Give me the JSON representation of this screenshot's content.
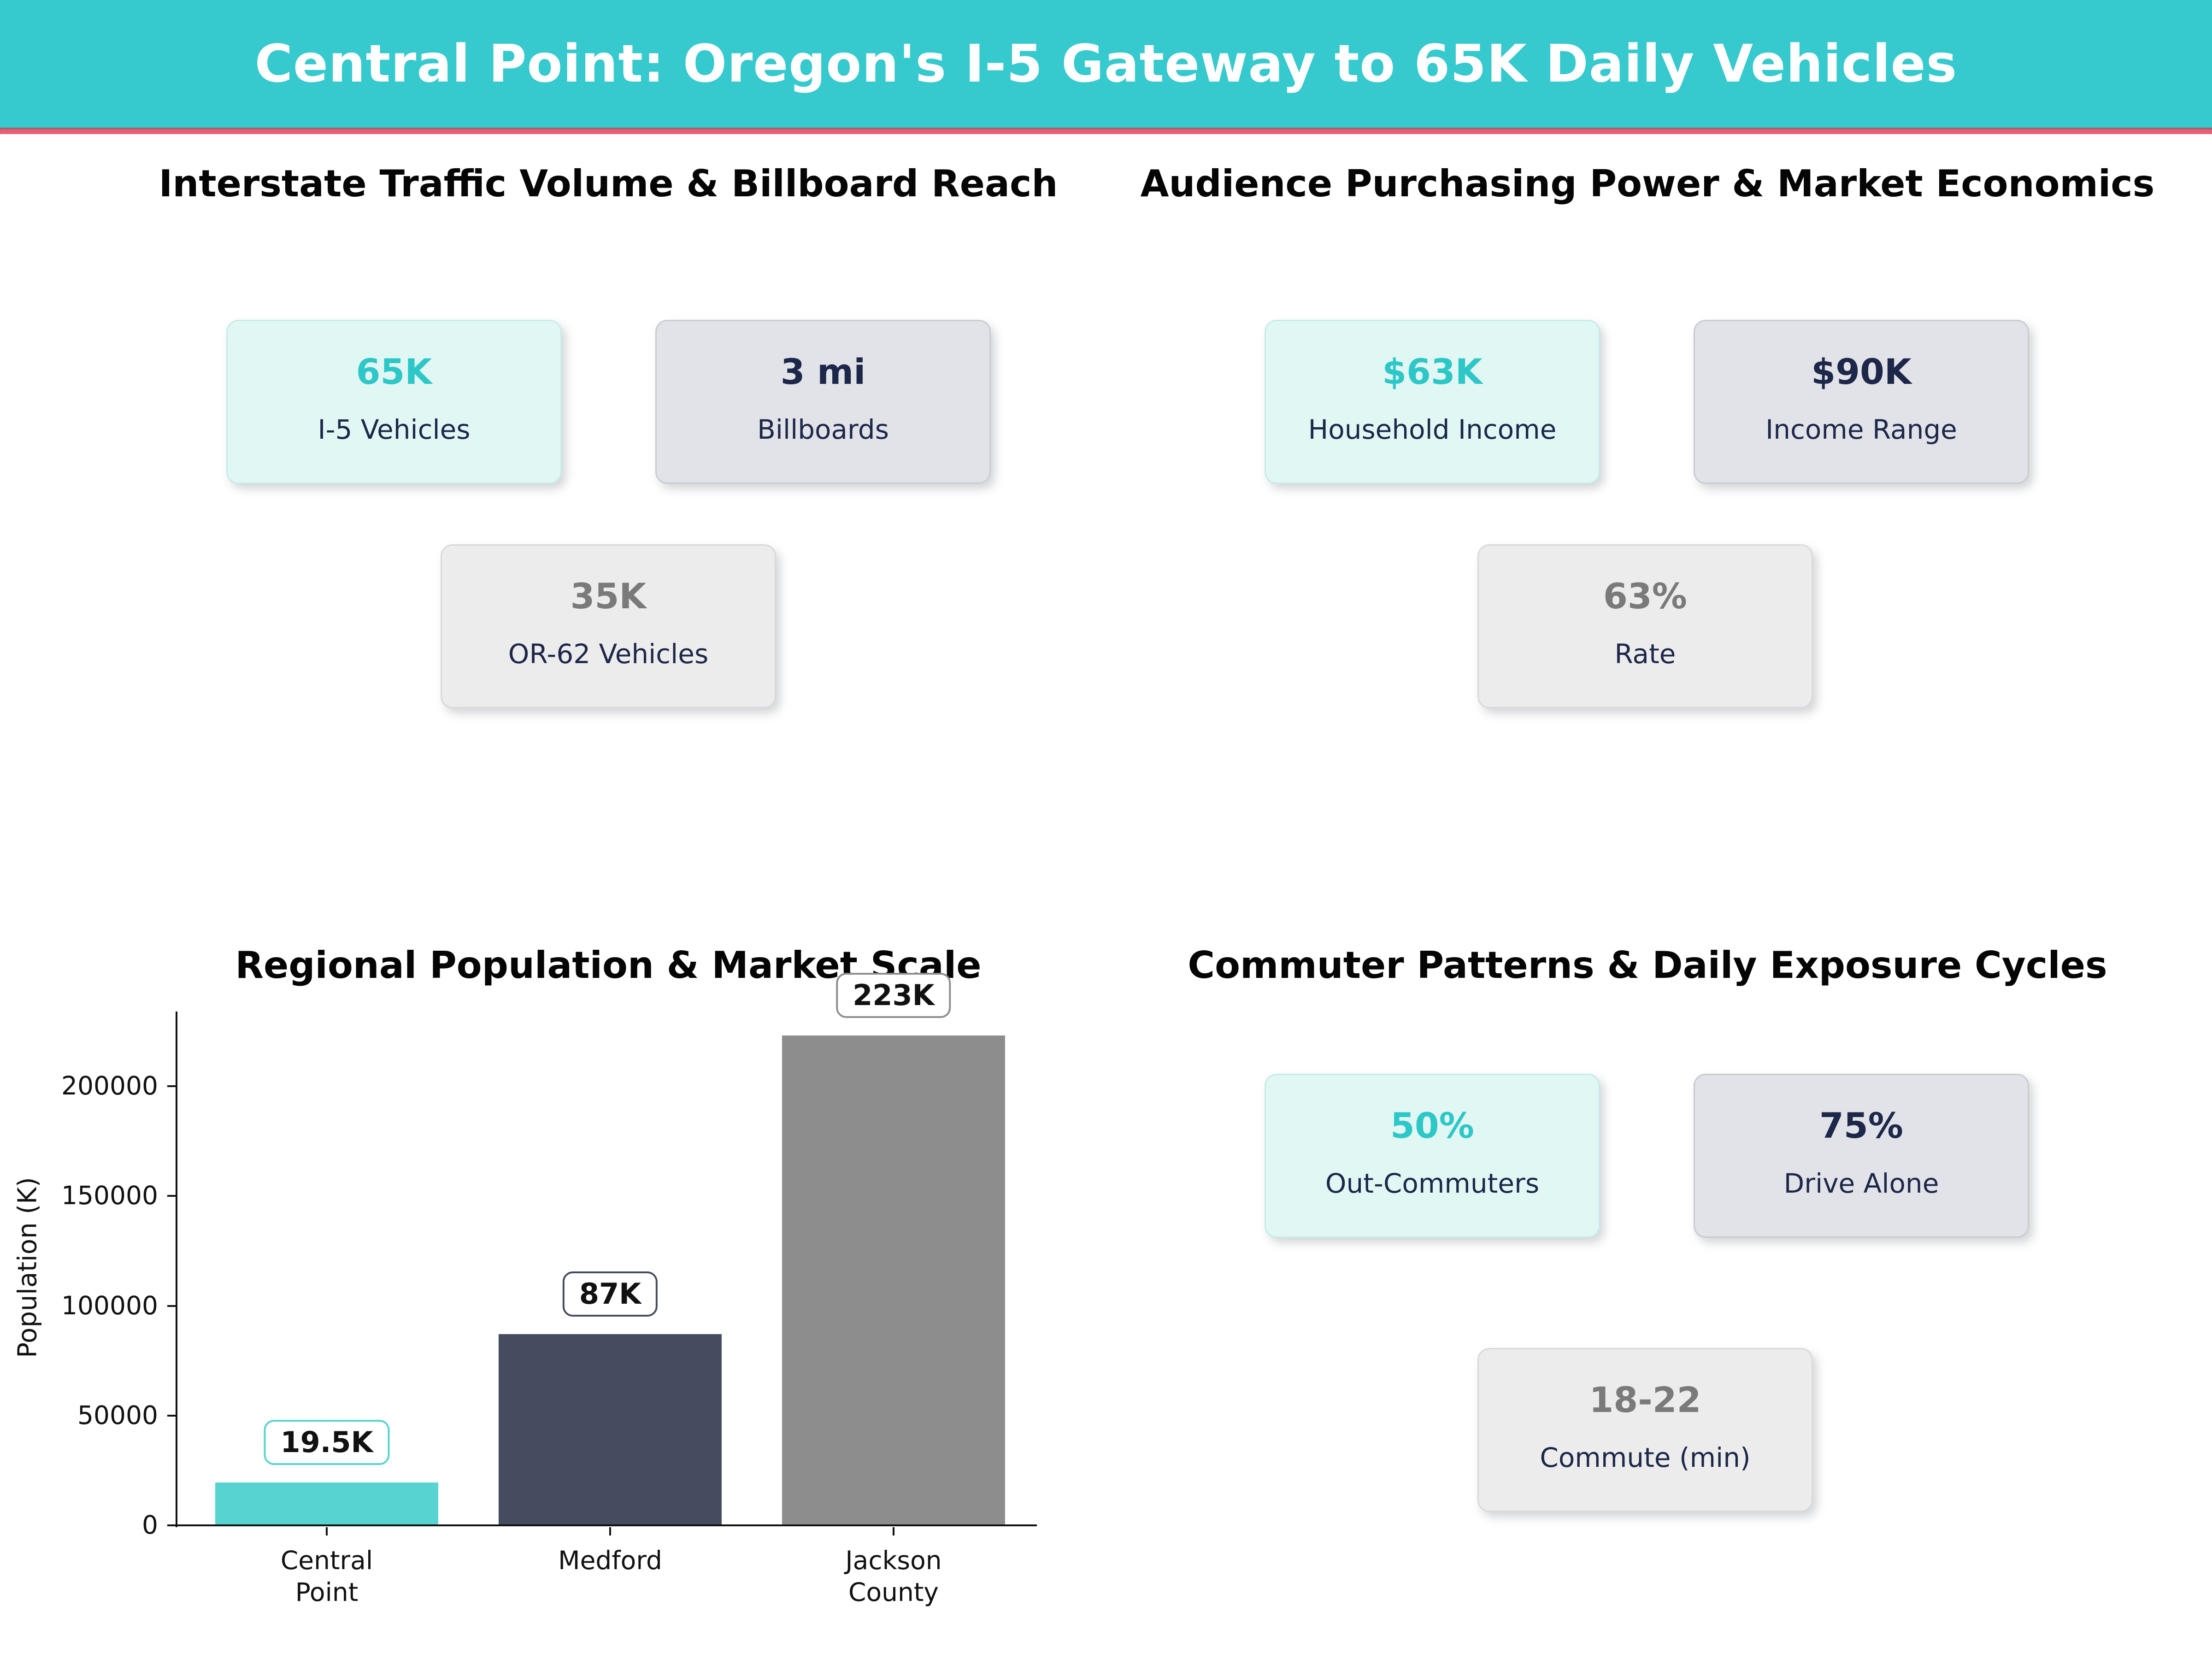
{
  "header": {
    "title": "Central Point: Oregon's I-5 Gateway to 65K Daily Vehicles",
    "bg_color": "#36c9cd",
    "accent_line_color": "#ec5f74"
  },
  "sections": {
    "traffic": {
      "title": "Interstate Traffic Volume & Billboard Reach",
      "cards": [
        {
          "value": "65K",
          "label": "I-5 Vehicles",
          "variant": "teal"
        },
        {
          "value": "3 mi",
          "label": "Billboards",
          "variant": "slate"
        },
        {
          "value": "35K",
          "label": "OR-62 Vehicles",
          "variant": "light"
        }
      ]
    },
    "economics": {
      "title": "Audience Purchasing Power & Market Economics",
      "cards": [
        {
          "value": "$63K",
          "label": "Household Income",
          "variant": "teal"
        },
        {
          "value": "$90K",
          "label": "Income Range",
          "variant": "slate"
        },
        {
          "value": "63%",
          "label": "Rate",
          "variant": "light"
        }
      ]
    },
    "population": {
      "title": "Regional Population & Market Scale"
    },
    "commuter": {
      "title": "Commuter Patterns & Daily Exposure Cycles",
      "cards": [
        {
          "value": "50%",
          "label": "Out-Commuters",
          "variant": "teal"
        },
        {
          "value": "75%",
          "label": "Drive Alone",
          "variant": "slate"
        },
        {
          "value": "18-22",
          "label": "Commute (min)",
          "variant": "light"
        }
      ]
    }
  },
  "colors": {
    "teal_accent": "#2dc7c7",
    "navy": "#1c2749",
    "gray_value": "#7a7a7a",
    "header_teal": "#36c9cd",
    "accent_pink": "#ec5f74"
  },
  "chart_data": {
    "type": "bar",
    "title": "Regional Population & Market Scale",
    "categories": [
      "Central\nPoint",
      "Medford",
      "Jackson\nCounty"
    ],
    "values": [
      19500,
      87000,
      223000
    ],
    "bar_labels": [
      "19.5K",
      "87K",
      "223K"
    ],
    "bar_colors": [
      "#57d4d2",
      "#454c60",
      "#8d8d8d"
    ],
    "xlabel": "",
    "ylabel": "Population (K)",
    "yticks": [
      0,
      50000,
      100000,
      150000,
      200000
    ],
    "ylim": [
      0,
      234000
    ],
    "grid": false,
    "legend_position": "none"
  }
}
